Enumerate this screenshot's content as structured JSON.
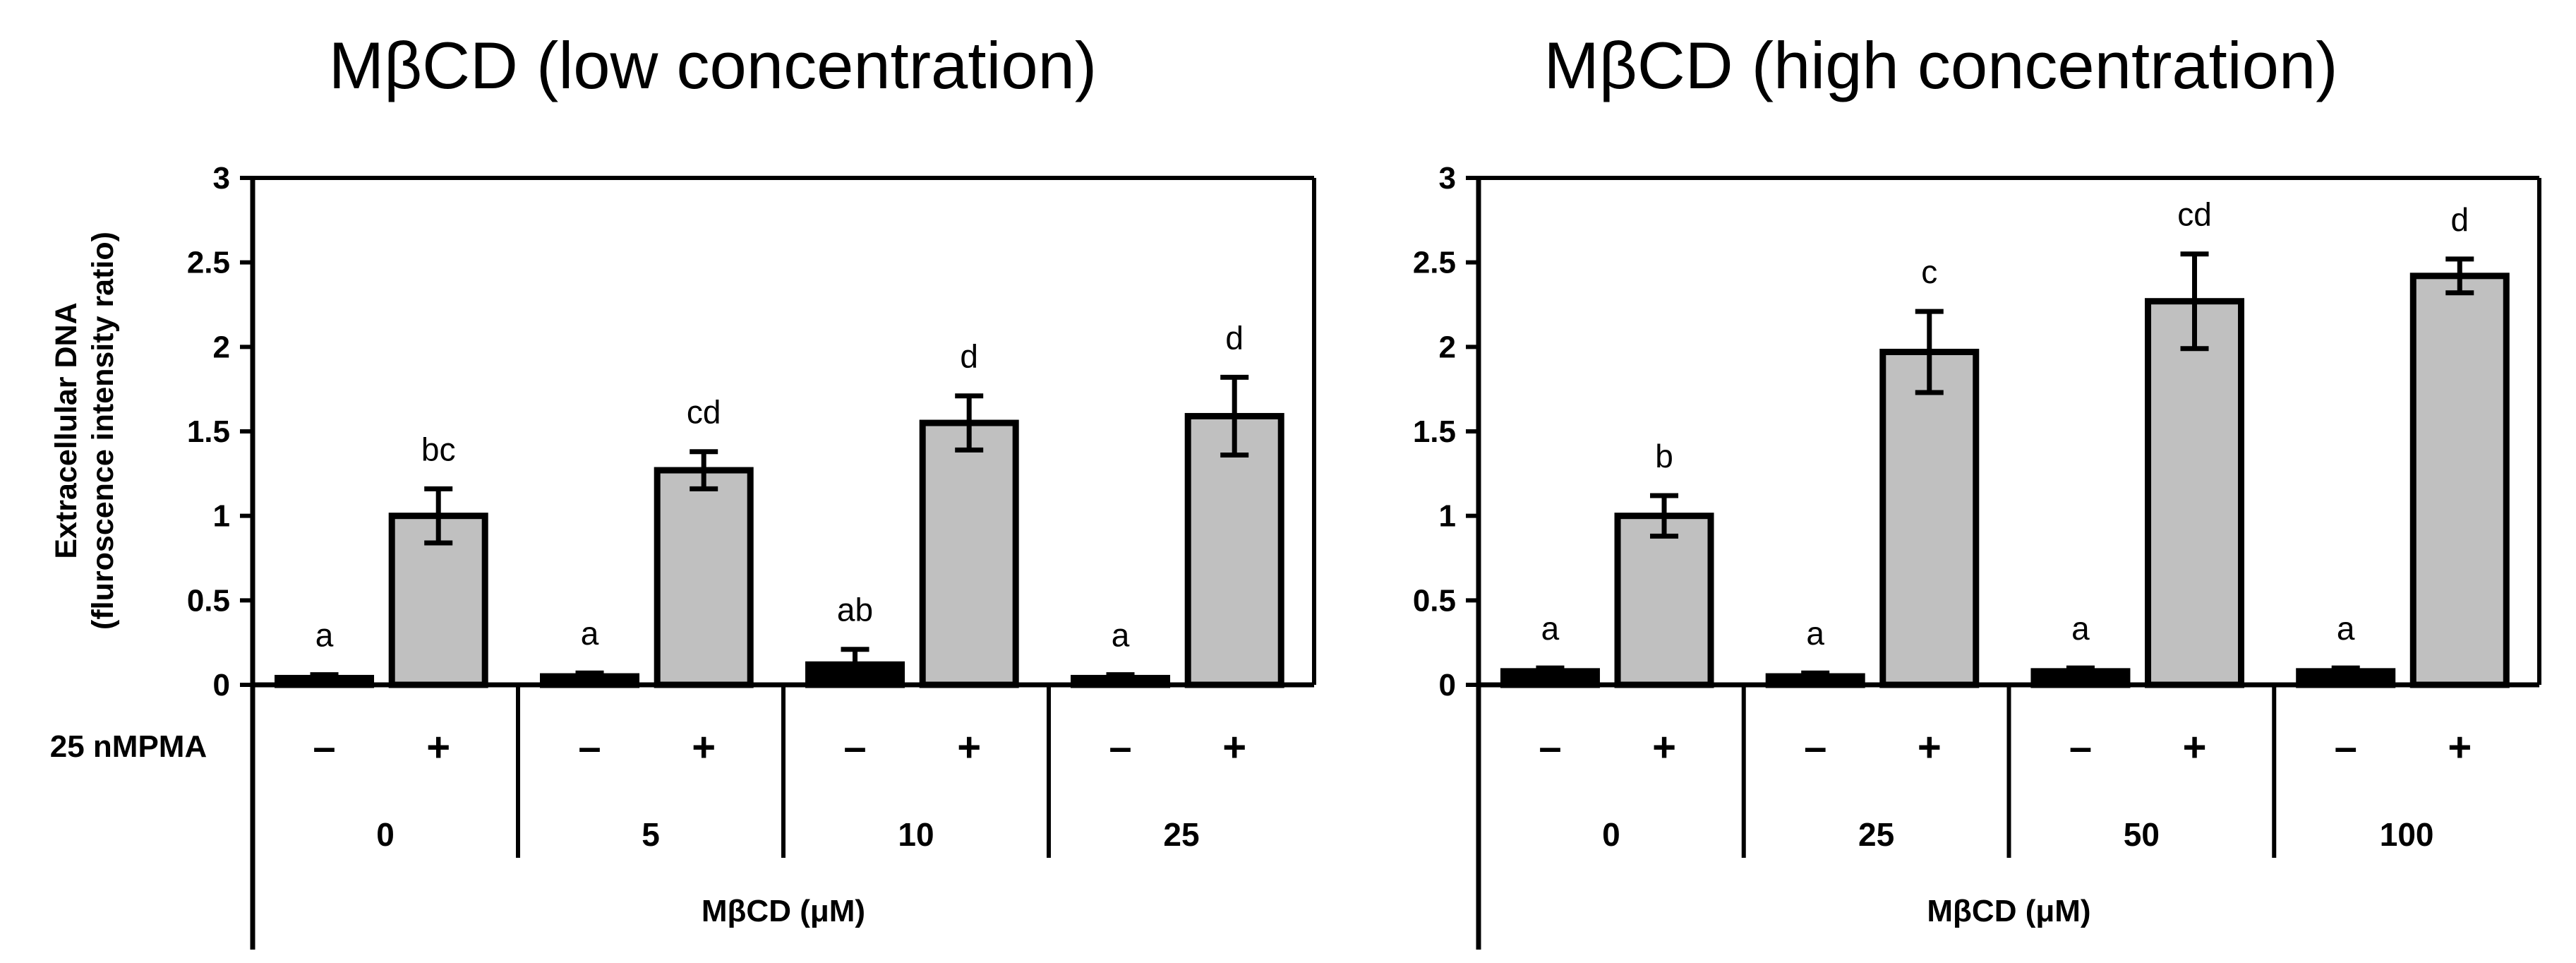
{
  "colors": {
    "background": "#ffffff",
    "axis": "#000000",
    "bar_plus": "#c0c0c0",
    "bar_minus": "#000000"
  },
  "shared": {
    "ylabel_line1": "Extracellular DNA",
    "ylabel_line2": "(fluroscence intensity ratio)",
    "condition_label": "25 nMPMA",
    "minus_sign": "–",
    "plus_sign": "+"
  },
  "chart_data": [
    {
      "type": "bar",
      "title": "MβCD (low concentration)",
      "xlabel": "MβCD (μM)",
      "ylabel": "Extracellular DNA (fluroscence intensity ratio)",
      "ylim": [
        0,
        3
      ],
      "yticks": [
        "0",
        "0.5",
        "1",
        "1.5",
        "2",
        "2.5",
        "3"
      ],
      "categories": [
        "0",
        "5",
        "10",
        "25"
      ],
      "series": [
        {
          "name": "–",
          "values": [
            0.04,
            0.05,
            0.12,
            0.04
          ],
          "errors": [
            0.02,
            0.02,
            0.09,
            0.02
          ],
          "letters": [
            "a",
            "a",
            "ab",
            "a"
          ]
        },
        {
          "name": "+",
          "values": [
            1.0,
            1.27,
            1.55,
            1.59
          ],
          "errors": [
            0.16,
            0.11,
            0.16,
            0.23
          ],
          "letters": [
            "bc",
            "cd",
            "d",
            "d"
          ]
        }
      ]
    },
    {
      "type": "bar",
      "title": "MβCD (high concentration)",
      "xlabel": "MβCD (μM)",
      "ylabel": "Extracellular DNA (fluroscence intensity ratio)",
      "ylim": [
        0,
        3
      ],
      "yticks": [
        "0",
        "0.5",
        "1",
        "1.5",
        "2",
        "2.5",
        "3"
      ],
      "categories": [
        "0",
        "25",
        "50",
        "100"
      ],
      "series": [
        {
          "name": "–",
          "values": [
            0.08,
            0.05,
            0.08,
            0.08
          ],
          "errors": [
            0.02,
            0.02,
            0.02,
            0.02
          ],
          "letters": [
            "a",
            "a",
            "a",
            "a"
          ]
        },
        {
          "name": "+",
          "values": [
            1.0,
            1.97,
            2.27,
            2.42
          ],
          "errors": [
            0.12,
            0.24,
            0.28,
            0.1
          ],
          "letters": [
            "b",
            "c",
            "cd",
            "d"
          ]
        }
      ]
    }
  ]
}
